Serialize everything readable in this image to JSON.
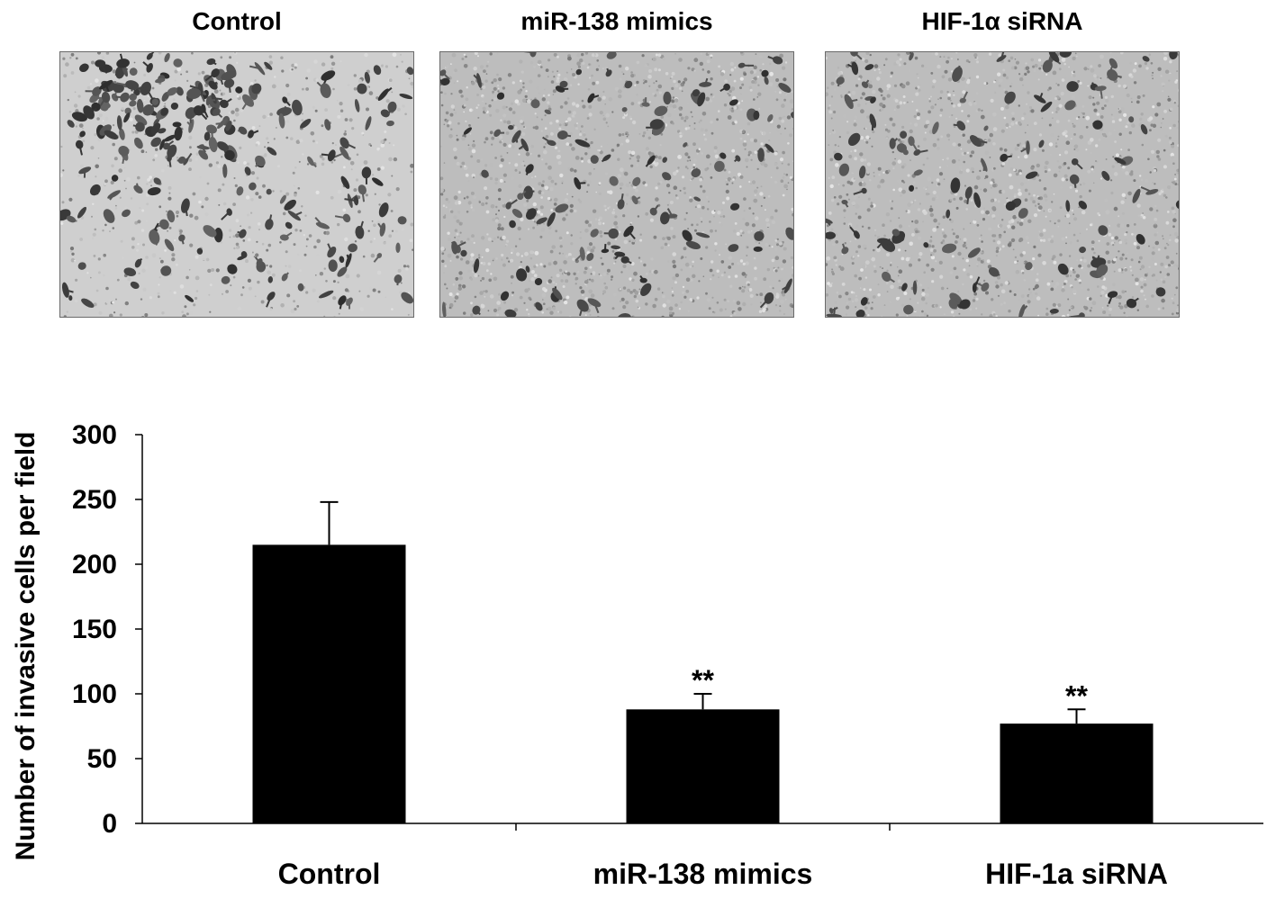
{
  "micrographs": [
    {
      "title": "Control",
      "cell_density": "high"
    },
    {
      "title": "miR-138 mimics",
      "cell_density": "medium"
    },
    {
      "title": "HIF-1α siRNA",
      "cell_density": "medium"
    }
  ],
  "chart_data": {
    "type": "bar",
    "title": "",
    "xlabel": "",
    "ylabel": "Number of invasive cells per field",
    "ylim": [
      0,
      300
    ],
    "yticks": [
      0,
      50,
      100,
      150,
      200,
      250,
      300
    ],
    "ytick_labels": [
      "0",
      "50",
      "100",
      "150",
      "200",
      "250",
      "300"
    ],
    "categories": [
      "Control",
      "miR-138 mimics",
      "HIF-1a siRNA"
    ],
    "values": [
      215,
      88,
      77
    ],
    "error_upper": [
      33,
      12,
      11
    ],
    "annotations": [
      "",
      "**",
      "**"
    ],
    "bar_color": "#000000",
    "grid": false,
    "legend": "none"
  }
}
